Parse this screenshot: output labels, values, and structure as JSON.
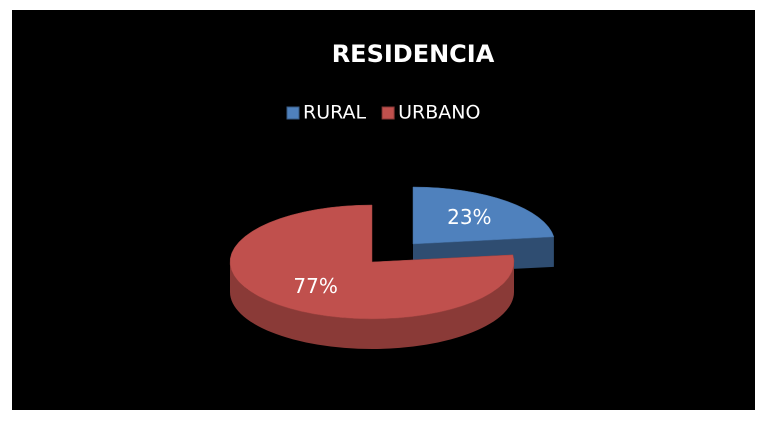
{
  "chart_data": {
    "type": "pie3d",
    "title": "RESIDENCIA",
    "categories": [
      "RURAL",
      "URBANO"
    ],
    "values": [
      23,
      77
    ],
    "value_labels": [
      "23%",
      "77%"
    ],
    "colors": [
      "#4f81bd",
      "#c0504d"
    ],
    "legend": "top"
  }
}
